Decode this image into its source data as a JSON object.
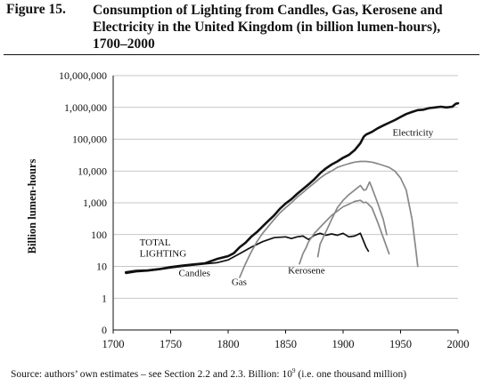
{
  "figure_label": "Figure 15.",
  "title": "Consumption of Lighting from Candles, Gas, Kerosene and Electricity in the United Kingdom (in billion lumen-hours), 1700–2000",
  "source_note": {
    "prefix": "Source: authors’ own estimates – see Section 2.2 and 2.3.  Billion: 10",
    "exponent": "9",
    "suffix": " (i.e. one thousand million)"
  },
  "chart_data": {
    "type": "line",
    "ylabel": "Billion lumen-hours",
    "xlabel": "",
    "xlim": [
      1700,
      2000
    ],
    "ylim": [
      0,
      10000000
    ],
    "y_scale": "log",
    "grid": "horizontal",
    "x_ticks": [
      "1700",
      "1750",
      "1800",
      "1850",
      "1900",
      "1950",
      "2000"
    ],
    "y_ticks": [
      "0",
      "1",
      "10",
      "100",
      "1,000",
      "10,000",
      "100,000",
      "1,000,000",
      "10,000,000"
    ],
    "series": [
      {
        "name": "TOTAL LIGHTING",
        "color": "#111111",
        "points": [
          [
            1711,
            6.5
          ],
          [
            1720,
            7.2
          ],
          [
            1730,
            7.5
          ],
          [
            1740,
            8.2
          ],
          [
            1750,
            9.5
          ],
          [
            1760,
            10.5
          ],
          [
            1770,
            11.5
          ],
          [
            1780,
            12.5
          ],
          [
            1790,
            17
          ],
          [
            1800,
            21
          ],
          [
            1805,
            26
          ],
          [
            1810,
            40
          ],
          [
            1815,
            55
          ],
          [
            1820,
            85
          ],
          [
            1825,
            120
          ],
          [
            1830,
            180
          ],
          [
            1835,
            270
          ],
          [
            1840,
            400
          ],
          [
            1845,
            650
          ],
          [
            1850,
            950
          ],
          [
            1855,
            1300
          ],
          [
            1860,
            1900
          ],
          [
            1865,
            2700
          ],
          [
            1870,
            3800
          ],
          [
            1875,
            5500
          ],
          [
            1880,
            8500
          ],
          [
            1885,
            12000
          ],
          [
            1890,
            16000
          ],
          [
            1895,
            20000
          ],
          [
            1900,
            26000
          ],
          [
            1905,
            32000
          ],
          [
            1910,
            45000
          ],
          [
            1915,
            75000
          ],
          [
            1918,
            120000
          ],
          [
            1920,
            140000
          ],
          [
            1925,
            170000
          ],
          [
            1930,
            220000
          ],
          [
            1935,
            270000
          ],
          [
            1940,
            330000
          ],
          [
            1945,
            400000
          ],
          [
            1950,
            500000
          ],
          [
            1955,
            620000
          ],
          [
            1960,
            720000
          ],
          [
            1965,
            820000
          ],
          [
            1970,
            850000
          ],
          [
            1975,
            950000
          ],
          [
            1980,
            1000000
          ],
          [
            1985,
            1050000
          ],
          [
            1990,
            1000000
          ],
          [
            1995,
            1050000
          ],
          [
            1998,
            1300000
          ],
          [
            2000,
            1350000
          ]
        ]
      },
      {
        "name": "Candles",
        "color": "#111111",
        "points": [
          [
            1711,
            6
          ],
          [
            1720,
            6.8
          ],
          [
            1730,
            7.2
          ],
          [
            1740,
            8
          ],
          [
            1750,
            9
          ],
          [
            1760,
            10
          ],
          [
            1770,
            11
          ],
          [
            1780,
            12
          ],
          [
            1790,
            13
          ],
          [
            1800,
            16
          ],
          [
            1810,
            25
          ],
          [
            1820,
            40
          ],
          [
            1830,
            60
          ],
          [
            1840,
            80
          ],
          [
            1850,
            85
          ],
          [
            1855,
            75
          ],
          [
            1860,
            85
          ],
          [
            1865,
            90
          ],
          [
            1870,
            70
          ],
          [
            1875,
            95
          ],
          [
            1880,
            110
          ],
          [
            1885,
            95
          ],
          [
            1890,
            105
          ],
          [
            1895,
            95
          ],
          [
            1900,
            110
          ],
          [
            1905,
            85
          ],
          [
            1910,
            90
          ],
          [
            1915,
            110
          ],
          [
            1920,
            40
          ],
          [
            1922,
            30
          ]
        ]
      },
      {
        "name": "Gas",
        "color": "#888888",
        "points": [
          [
            1810,
            4.5
          ],
          [
            1815,
            12
          ],
          [
            1820,
            28
          ],
          [
            1825,
            60
          ],
          [
            1830,
            110
          ],
          [
            1835,
            180
          ],
          [
            1840,
            300
          ],
          [
            1845,
            480
          ],
          [
            1850,
            700
          ],
          [
            1855,
            1000
          ],
          [
            1860,
            1500
          ],
          [
            1865,
            2100
          ],
          [
            1870,
            3000
          ],
          [
            1875,
            4200
          ],
          [
            1880,
            6000
          ],
          [
            1885,
            8000
          ],
          [
            1890,
            10000
          ],
          [
            1895,
            13000
          ],
          [
            1900,
            15000
          ],
          [
            1905,
            17000
          ],
          [
            1910,
            19000
          ],
          [
            1915,
            20000
          ],
          [
            1920,
            20000
          ],
          [
            1925,
            19000
          ],
          [
            1930,
            17000
          ],
          [
            1935,
            15000
          ],
          [
            1940,
            13000
          ],
          [
            1945,
            10000
          ],
          [
            1950,
            6000
          ],
          [
            1955,
            2500
          ],
          [
            1960,
            300
          ],
          [
            1963,
            40
          ],
          [
            1965,
            10
          ]
        ]
      },
      {
        "name": "Kerosene",
        "color": "#888888",
        "points": [
          [
            1862,
            12
          ],
          [
            1865,
            25
          ],
          [
            1868,
            40
          ],
          [
            1870,
            60
          ],
          [
            1875,
            110
          ],
          [
            1880,
            170
          ],
          [
            1885,
            260
          ],
          [
            1890,
            400
          ],
          [
            1895,
            550
          ],
          [
            1900,
            750
          ],
          [
            1905,
            900
          ],
          [
            1910,
            1100
          ],
          [
            1915,
            1200
          ],
          [
            1918,
            1000
          ],
          [
            1920,
            1050
          ],
          [
            1925,
            700
          ],
          [
            1930,
            250
          ],
          [
            1935,
            80
          ],
          [
            1940,
            25
          ]
        ]
      },
      {
        "name": "Electricity",
        "color": "#888888",
        "points": [
          [
            1878,
            20
          ],
          [
            1880,
            50
          ],
          [
            1885,
            120
          ],
          [
            1890,
            300
          ],
          [
            1895,
            700
          ],
          [
            1900,
            1200
          ],
          [
            1905,
            1800
          ],
          [
            1910,
            2500
          ],
          [
            1915,
            3500
          ],
          [
            1918,
            2500
          ],
          [
            1920,
            2600
          ],
          [
            1923,
            4500
          ],
          [
            1925,
            3000
          ],
          [
            1930,
            1000
          ],
          [
            1935,
            300
          ],
          [
            1938,
            100
          ]
        ]
      }
    ],
    "annotations": [
      {
        "text": "TOTAL",
        "x": 1723,
        "y": 45
      },
      {
        "text": "LIGHTING",
        "x": 1723,
        "y": 20
      },
      {
        "text": "Candles",
        "x": 1757,
        "y": 5
      },
      {
        "text": "Gas",
        "x": 1803,
        "y": 2.6
      },
      {
        "text": "Kerosene",
        "x": 1852,
        "y": 6
      },
      {
        "text": "Electricity",
        "x": 1943,
        "y": 130000
      }
    ]
  }
}
